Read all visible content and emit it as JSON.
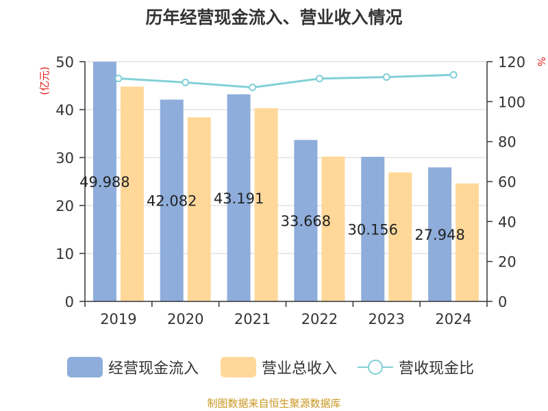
{
  "chart_data": {
    "type": "bar",
    "title": "历年经营现金流入、营业收入情况",
    "categories": [
      "2019",
      "2020",
      "2021",
      "2022",
      "2023",
      "2024"
    ],
    "series": [
      {
        "name": "经营现金流入",
        "kind": "bar",
        "axis": "left",
        "color": "#8eaddb",
        "values": [
          49.988,
          42.082,
          43.191,
          33.668,
          30.156,
          27.948
        ],
        "labels": [
          "49.988",
          "42.082",
          "43.191",
          "33.668",
          "30.156",
          "27.948"
        ]
      },
      {
        "name": "营业总收入",
        "kind": "bar",
        "axis": "left",
        "color": "#ffd899",
        "values": [
          44.8,
          38.4,
          40.3,
          30.2,
          26.9,
          24.6
        ]
      },
      {
        "name": "营收现金比",
        "kind": "line",
        "axis": "right",
        "color": "#80d0d6",
        "values": [
          111.6,
          109.6,
          107.1,
          111.5,
          112.3,
          113.4
        ]
      }
    ],
    "ylabel_left": "(亿元)",
    "ylabel_right": "%",
    "ylim_left": [
      0,
      50
    ],
    "ylim_right": [
      0,
      120
    ],
    "yticks_left": [
      0,
      10,
      20,
      30,
      40,
      50
    ],
    "yticks_right": [
      0,
      20,
      40,
      60,
      80,
      100,
      120
    ],
    "grid": true,
    "legend_position": "bottom"
  },
  "footer": "制图数据来自恒生聚源数据库"
}
